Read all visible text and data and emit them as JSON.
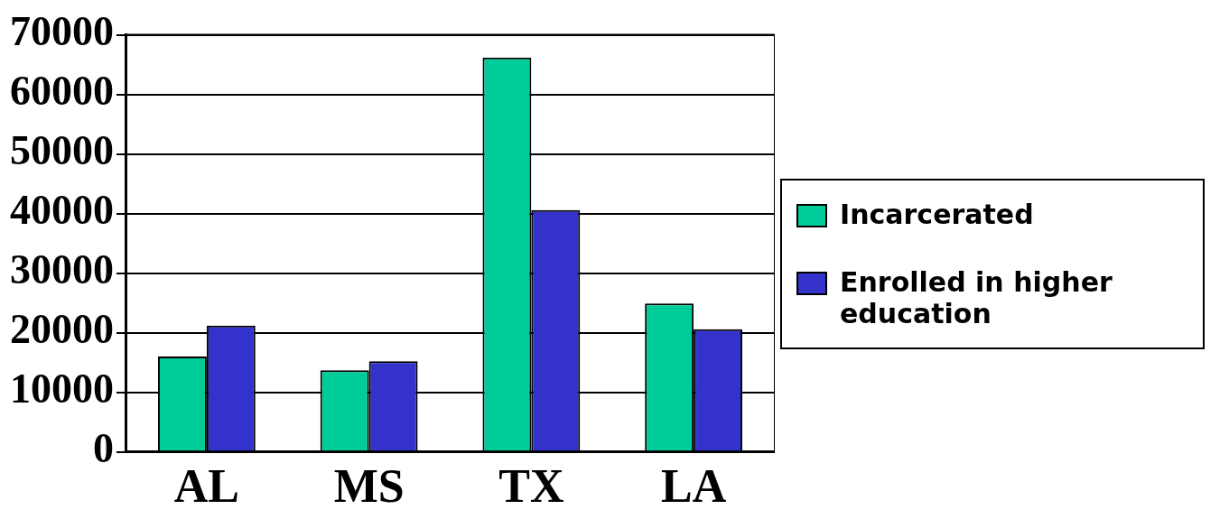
{
  "chart_data": {
    "type": "bar",
    "categories": [
      "AL",
      "MS",
      "TX",
      "LA"
    ],
    "series": [
      {
        "name": "Incarcerated",
        "color": "#00cc99",
        "values": [
          16000,
          13700,
          66200,
          24900
        ]
      },
      {
        "name": "Enrolled in higher education",
        "color": "#3333cc",
        "values": [
          21200,
          15200,
          40600,
          20600
        ]
      }
    ],
    "ylim": [
      0,
      70000
    ],
    "yticks": [
      0,
      10000,
      20000,
      30000,
      40000,
      50000,
      60000,
      70000
    ],
    "grid": "y",
    "legend": "right"
  }
}
